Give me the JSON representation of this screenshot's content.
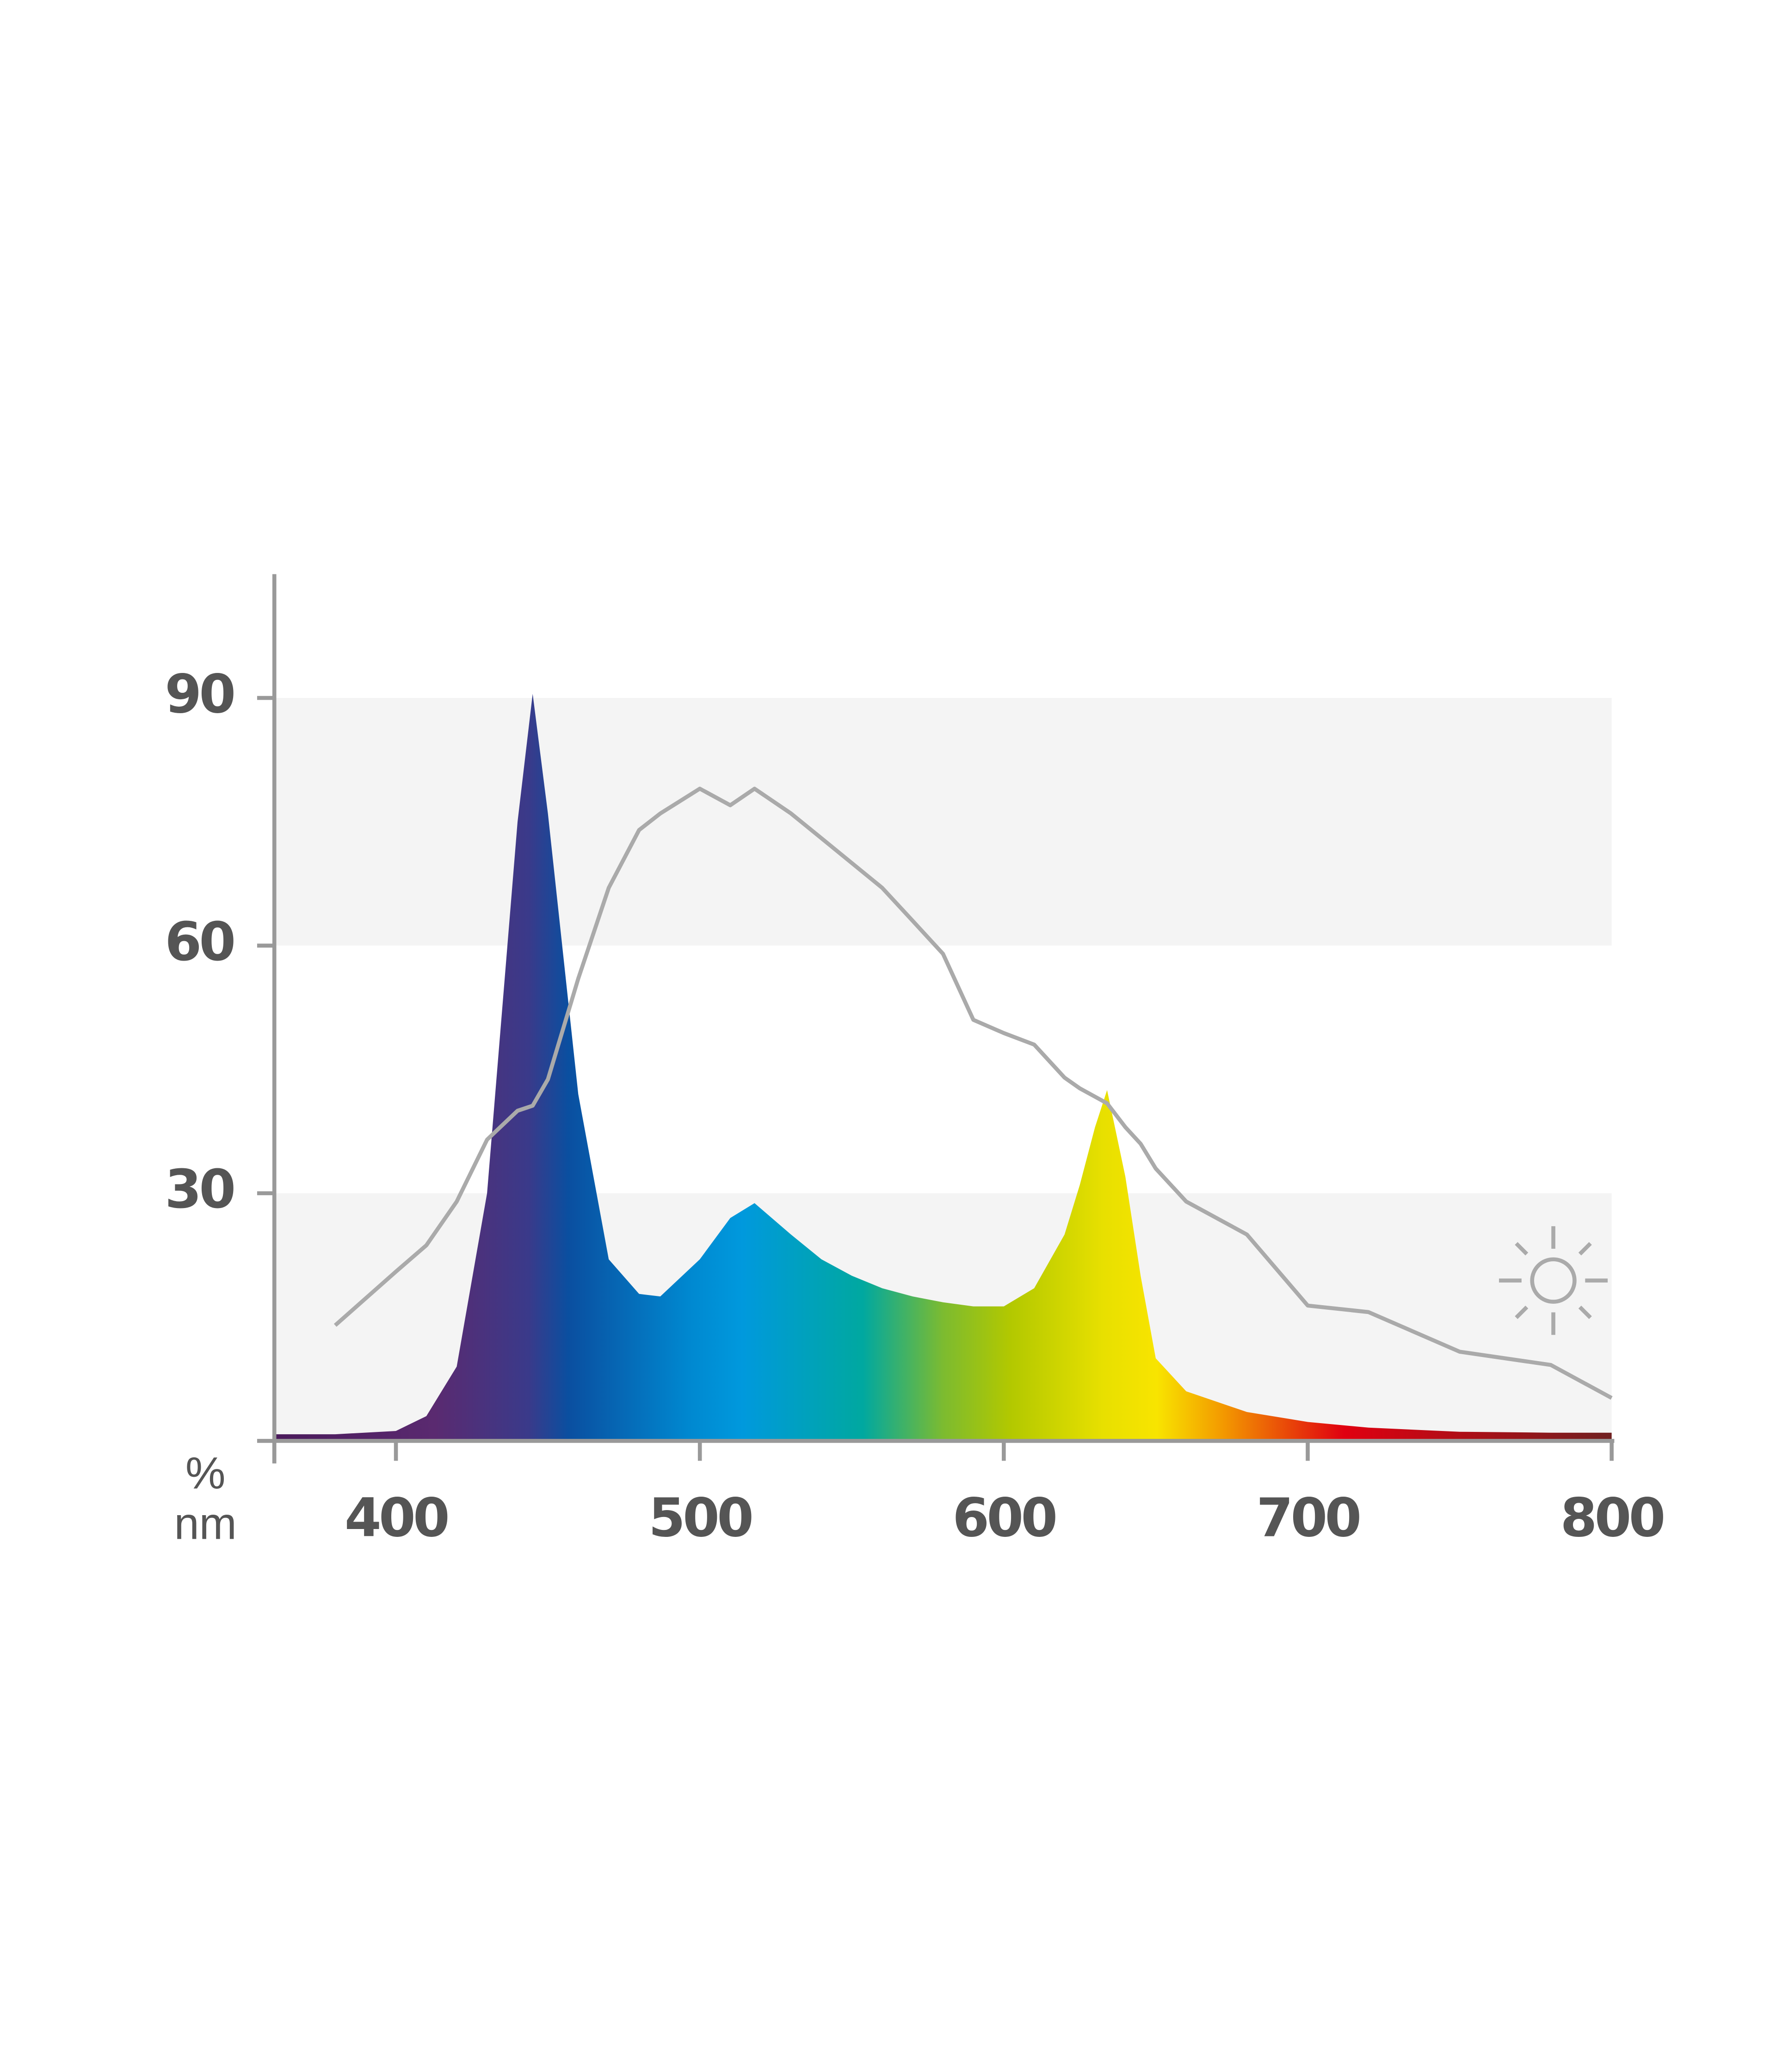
{
  "chart_data": {
    "type": "area",
    "x": [
      360,
      380,
      400,
      410,
      420,
      430,
      440,
      445,
      450,
      460,
      470,
      480,
      487,
      500,
      510,
      518,
      530,
      540,
      550,
      560,
      570,
      580,
      590,
      600,
      610,
      620,
      625,
      630,
      634,
      640,
      645,
      650,
      660,
      680,
      700,
      720,
      750,
      780,
      800
    ],
    "series": [
      {
        "color": "spectrum",
        "fill": true,
        "values": [
          0.8,
          0.8,
          1.2,
          3,
          9,
          30,
          75,
          90.5,
          76,
          42,
          22,
          17.8,
          17.5,
          22,
          27,
          28.8,
          25,
          22,
          20,
          18.5,
          17.5,
          16.8,
          16.3,
          16.3,
          18.5,
          25,
          31,
          38,
          42.5,
          32,
          20,
          10,
          6,
          3.5,
          2.3,
          1.6,
          1.1,
          1,
          1
        ]
      },
      {
        "color": "#aaaaaa",
        "fill": false,
        "values": [
          null,
          14,
          20.5,
          23.7,
          29,
          36.5,
          40,
          40.6,
          43.8,
          56,
          67,
          74,
          76,
          79,
          77,
          79,
          76,
          73,
          70,
          67,
          63,
          59,
          51,
          49.4,
          48,
          44,
          42.7,
          41.7,
          40.9,
          38,
          36,
          33,
          29,
          25,
          16.4,
          15.6,
          10.8,
          9.2,
          5.2
        ]
      }
    ],
    "xlim": [
      360,
      800
    ],
    "xticks": [
      400,
      500,
      600,
      700,
      800
    ],
    "ylim": [
      0,
      105
    ],
    "yticks": [
      30,
      60,
      90
    ],
    "grid": "bands",
    "ylabel": "%",
    "xlabel": "nm"
  }
}
